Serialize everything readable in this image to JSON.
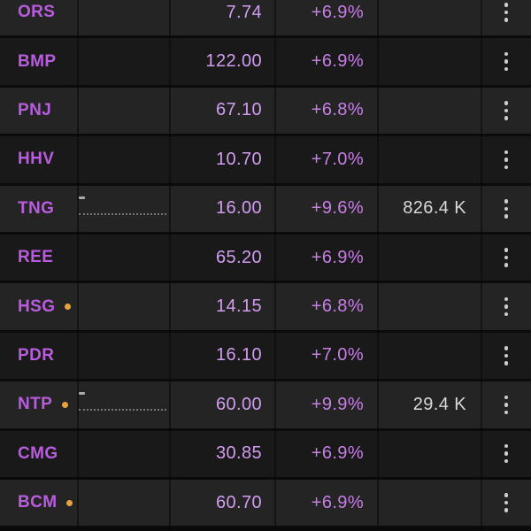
{
  "watchlist": {
    "rows": [
      {
        "symbol": "ORS",
        "price": "7.74",
        "change": "+6.9%",
        "volume": "",
        "has_alert_dot": false,
        "has_sparkline": false
      },
      {
        "symbol": "BMP",
        "price": "122.00",
        "change": "+6.9%",
        "volume": "",
        "has_alert_dot": false,
        "has_sparkline": false
      },
      {
        "symbol": "PNJ",
        "price": "67.10",
        "change": "+6.8%",
        "volume": "",
        "has_alert_dot": false,
        "has_sparkline": false
      },
      {
        "symbol": "HHV",
        "price": "10.70",
        "change": "+7.0%",
        "volume": "",
        "has_alert_dot": false,
        "has_sparkline": false
      },
      {
        "symbol": "TNG",
        "price": "16.00",
        "change": "+9.6%",
        "volume": "826.4 K",
        "has_alert_dot": false,
        "has_sparkline": true
      },
      {
        "symbol": "REE",
        "price": "65.20",
        "change": "+6.9%",
        "volume": "",
        "has_alert_dot": false,
        "has_sparkline": false
      },
      {
        "symbol": "HSG",
        "price": "14.15",
        "change": "+6.8%",
        "volume": "",
        "has_alert_dot": true,
        "has_sparkline": false
      },
      {
        "symbol": "PDR",
        "price": "16.10",
        "change": "+7.0%",
        "volume": "",
        "has_alert_dot": false,
        "has_sparkline": false
      },
      {
        "symbol": "NTP",
        "price": "60.00",
        "change": "+9.9%",
        "volume": "29.4 K",
        "has_alert_dot": true,
        "has_sparkline": true
      },
      {
        "symbol": "CMG",
        "price": "30.85",
        "change": "+6.9%",
        "volume": "",
        "has_alert_dot": false,
        "has_sparkline": false
      },
      {
        "symbol": "BCM",
        "price": "60.70",
        "change": "+6.9%",
        "volume": "",
        "has_alert_dot": true,
        "has_sparkline": false
      }
    ],
    "icons": {
      "row_menu": "kebab-menu-icon",
      "alert": "orange-dot-icon",
      "mini_chart": "sparkline-icon"
    },
    "colors": {
      "ticker_limit_up": "#b95ce0",
      "price_limit_up": "#d29df0",
      "change_limit_up": "#c77fe6",
      "volume_text": "#d8d8d8",
      "alert_dot": "#e8a33d",
      "row_stripe_light": "#242424",
      "row_stripe_dark": "#191919",
      "separator": "#0b0b0b"
    }
  }
}
